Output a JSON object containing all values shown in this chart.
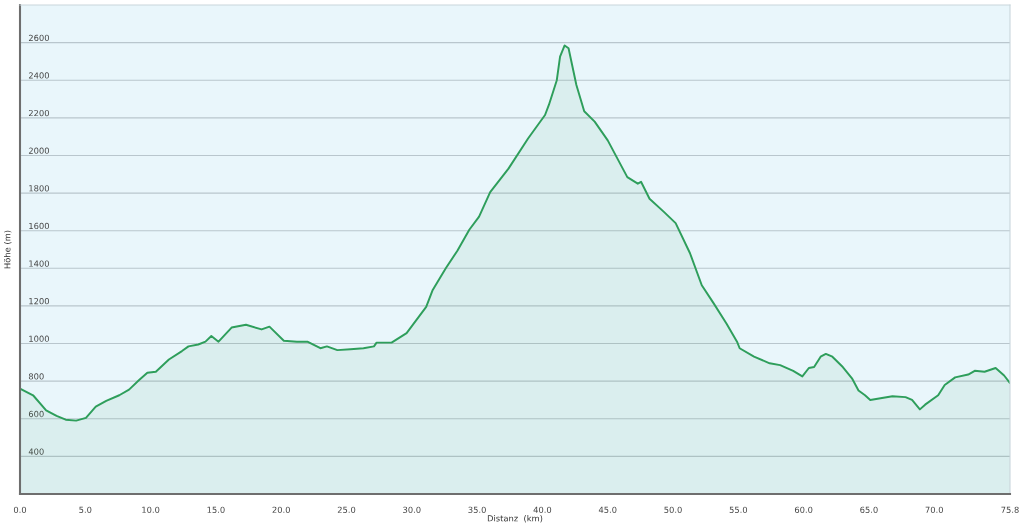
{
  "chart_data": {
    "type": "area",
    "xlabel": "Distanz  (km)",
    "ylabel": "Höhe (m)",
    "x": [
      0,
      1.0,
      2.0,
      2.8,
      3.5,
      4.3,
      5.05,
      5.8,
      6.6,
      7.6,
      8.35,
      9.1,
      9.75,
      10.4,
      11.4,
      12.4,
      12.9,
      13.65,
      14.2,
      14.65,
      15.2,
      16.2,
      17.3,
      18.5,
      19.1,
      20.2,
      21.2,
      22.0,
      23.0,
      23.5,
      24.3,
      25.3,
      26.3,
      27.1,
      27.3,
      28.45,
      29.6,
      31.1,
      31.6,
      32.6,
      33.5,
      34.4,
      35.15,
      36.0,
      37.4,
      38.9,
      40.2,
      40.5,
      41.1,
      41.35,
      41.7,
      42.0,
      42.2,
      42.6,
      43.2,
      44.0,
      45.0,
      46.5,
      47.3,
      47.55,
      48.2,
      49.3,
      50.2,
      51.3,
      52.2,
      53.1,
      54.1,
      54.9,
      55.1,
      56.2,
      57.4,
      58.2,
      59.2,
      59.9,
      60.4,
      60.8,
      61.3,
      61.7,
      62.2,
      63.0,
      63.7,
      64.2,
      64.7,
      65.1,
      66.0,
      66.8,
      67.8,
      68.3,
      68.9,
      69.3,
      70.3,
      70.8,
      71.6,
      72.6,
      73.1,
      73.85,
      74.7,
      75.35,
      75.8
    ],
    "series": [
      {
        "color": "#2e9e5b",
        "values": [
          760,
          725,
          645,
          615,
          595,
          590,
          605,
          665,
          695,
          725,
          755,
          805,
          845,
          850,
          915,
          960,
          985,
          995,
          1010,
          1040,
          1010,
          1085,
          1100,
          1075,
          1090,
          1015,
          1010,
          1010,
          975,
          985,
          965,
          970,
          975,
          985,
          1005,
          1005,
          1055,
          1195,
          1285,
          1400,
          1495,
          1605,
          1675,
          1805,
          1930,
          2090,
          2215,
          2270,
          2400,
          2525,
          2585,
          2570,
          2505,
          2375,
          2235,
          2180,
          2080,
          1885,
          1850,
          1860,
          1770,
          1700,
          1640,
          1480,
          1310,
          1215,
          1105,
          1010,
          975,
          930,
          895,
          885,
          855,
          825,
          870,
          875,
          930,
          945,
          930,
          875,
          815,
          750,
          725,
          700,
          710,
          720,
          715,
          700,
          650,
          675,
          725,
          780,
          820,
          835,
          855,
          850,
          870,
          830,
          790
        ]
      }
    ],
    "xlim": [
      0,
      75.8
    ],
    "ylim": [
      200,
      2800
    ],
    "xticks": [
      {
        "value": 0,
        "label": "0.0"
      },
      {
        "value": 5,
        "label": "5.0"
      },
      {
        "value": 10,
        "label": "10.0"
      },
      {
        "value": 15,
        "label": "15.0"
      },
      {
        "value": 20,
        "label": "20.0"
      },
      {
        "value": 25,
        "label": "25.0"
      },
      {
        "value": 30,
        "label": "30.0"
      },
      {
        "value": 35,
        "label": "35.0"
      },
      {
        "value": 40,
        "label": "40.0"
      },
      {
        "value": 45,
        "label": "45.0"
      },
      {
        "value": 50,
        "label": "50.0"
      },
      {
        "value": 55,
        "label": "55.0"
      },
      {
        "value": 60,
        "label": "60.0"
      },
      {
        "value": 65,
        "label": "65.0"
      },
      {
        "value": 70,
        "label": "70.0"
      },
      75.8
    ],
    "yticks": [
      400,
      600,
      800,
      1000,
      1200,
      1400,
      1600,
      1800,
      2000,
      2200,
      2400,
      2600
    ],
    "grid": "y"
  }
}
